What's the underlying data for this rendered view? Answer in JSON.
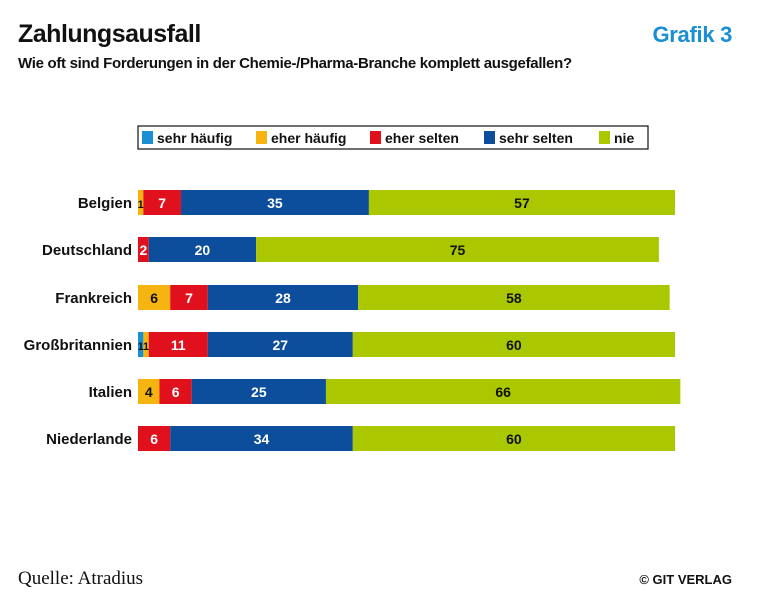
{
  "header": {
    "title": "Zahlungsausfall",
    "subtitle": "Wie oft sind Forderungen in der Chemie-/Pharma-Branche komplett ausgefallen?",
    "badge": "Grafik 3"
  },
  "footer": {
    "source": "Quelle: Atradius",
    "copyright": "© GIT VERLAG"
  },
  "chart_data": {
    "type": "bar",
    "orientation": "horizontal",
    "stacked": true,
    "legend_position": "top",
    "categories": [
      "Belgien",
      "Deutschland",
      "Frankreich",
      "Großbritannien",
      "Italien",
      "Niederlande"
    ],
    "series": [
      {
        "name": "sehr häufig",
        "color": "#1a8fd4",
        "values": [
          0,
          0,
          0,
          1,
          0,
          0
        ],
        "labels": [
          "",
          "",
          "",
          "1",
          "",
          ""
        ]
      },
      {
        "name": "eher häufig",
        "color": "#f5b40f",
        "values": [
          1,
          0,
          6,
          1,
          4,
          0
        ],
        "labels": [
          "1",
          "",
          "6",
          "1",
          "4",
          ""
        ]
      },
      {
        "name": "eher selten",
        "color": "#e0101d",
        "values": [
          7,
          2,
          7,
          11,
          6,
          6
        ],
        "labels": [
          "7",
          "2",
          "7",
          "11",
          "6",
          "6"
        ]
      },
      {
        "name": "sehr selten",
        "color": "#0c4d9c",
        "values": [
          35,
          20,
          28,
          27,
          25,
          34
        ],
        "labels": [
          "35",
          "20",
          "28",
          "27",
          "25",
          "34"
        ]
      },
      {
        "name": "nie",
        "color": "#abc700",
        "values": [
          57,
          75,
          58,
          60,
          66,
          60
        ],
        "labels": [
          "57",
          "75",
          "58",
          "60",
          "66",
          "60"
        ]
      }
    ]
  }
}
